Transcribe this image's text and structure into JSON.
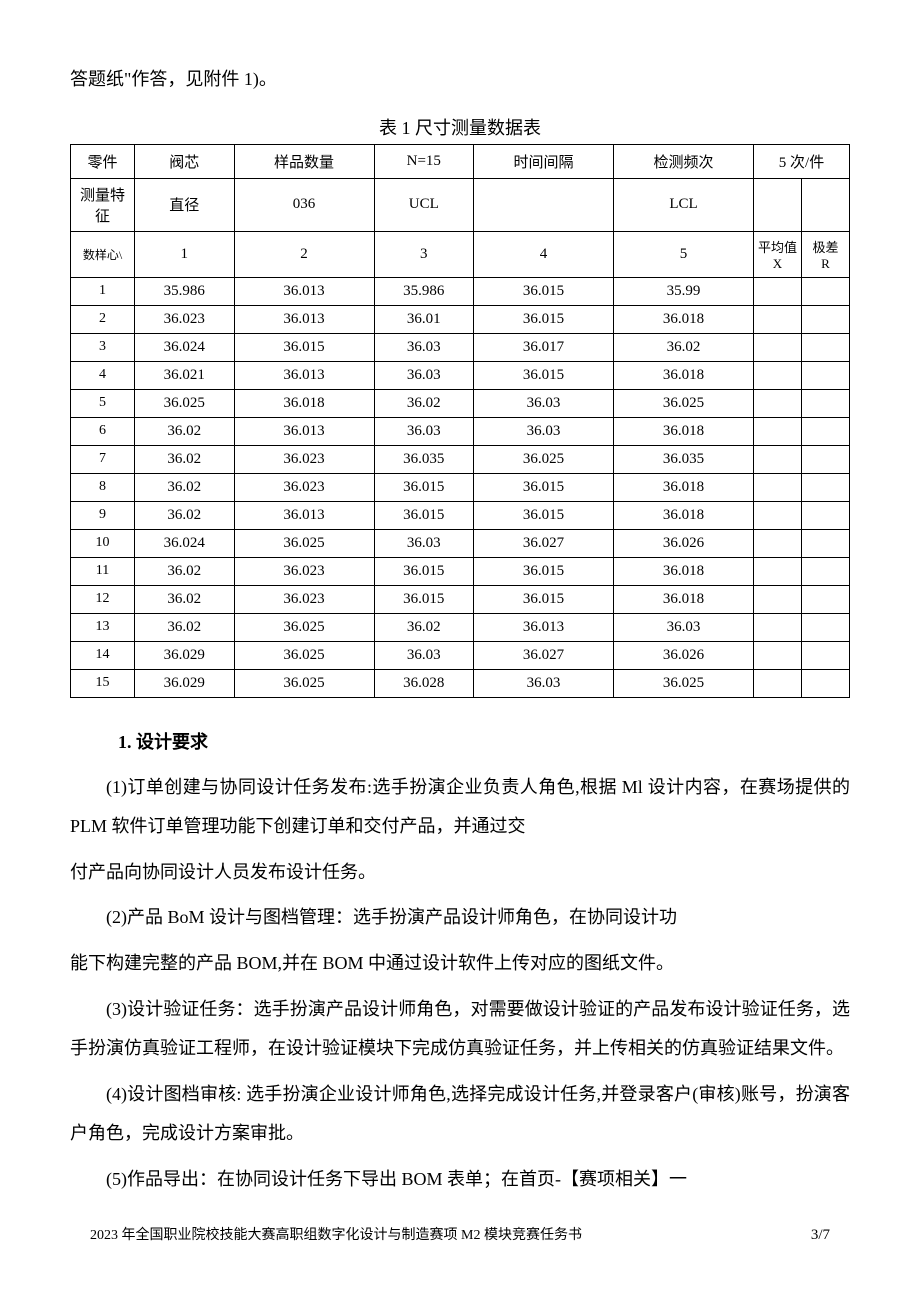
{
  "intro": "答题纸\"作答，见附件 1)。",
  "table_title": "表 1 尺寸测量数据表",
  "hdr1": {
    "c1": "零件",
    "c2": "阀芯",
    "c3": "样品数量",
    "c4": "N=15",
    "c5": "时间间隔",
    "c6": "检测频次",
    "c78": "5 次/件"
  },
  "hdr2": {
    "c1": "测量特征",
    "c2": "直径",
    "c3": "036",
    "c4": "UCL",
    "c5": "",
    "c6": "LCL",
    "c7": "",
    "c8": ""
  },
  "hdr3": {
    "c1": "数样心\\",
    "c2": "1",
    "c3": "2",
    "c4": "3",
    "c5": "4",
    "c6": "5",
    "c7": "平均值\nX",
    "c8": "极差\nR"
  },
  "rows": [
    {
      "n": "1",
      "v1": "35.986",
      "v2": "36.013",
      "v3": "35.986",
      "v4": "36.015",
      "v5": "35.99"
    },
    {
      "n": "2",
      "v1": "36.023",
      "v2": "36.013",
      "v3": "36.01",
      "v4": "36.015",
      "v5": "36.018"
    },
    {
      "n": "3",
      "v1": "36.024",
      "v2": "36.015",
      "v3": "36.03",
      "v4": "36.017",
      "v5": "36.02"
    },
    {
      "n": "4",
      "v1": "36.021",
      "v2": "36.013",
      "v3": "36.03",
      "v4": "36.015",
      "v5": "36.018"
    },
    {
      "n": "5",
      "v1": "36.025",
      "v2": "36.018",
      "v3": "36.02",
      "v4": "36.03",
      "v5": "36.025"
    },
    {
      "n": "6",
      "v1": "36.02",
      "v2": "36.013",
      "v3": "36.03",
      "v4": "36.03",
      "v5": "36.018"
    },
    {
      "n": "7",
      "v1": "36.02",
      "v2": "36.023",
      "v3": "36.035",
      "v4": "36.025",
      "v5": "36.035"
    },
    {
      "n": "8",
      "v1": "36.02",
      "v2": "36.023",
      "v3": "36.015",
      "v4": "36.015",
      "v5": "36.018"
    },
    {
      "n": "9",
      "v1": "36.02",
      "v2": "36.013",
      "v3": "36.015",
      "v4": "36.015",
      "v5": "36.018"
    },
    {
      "n": "10",
      "v1": "36.024",
      "v2": "36.025",
      "v3": "36.03",
      "v4": "36.027",
      "v5": "36.026"
    },
    {
      "n": "11",
      "v1": "36.02",
      "v2": "36.023",
      "v3": "36.015",
      "v4": "36.015",
      "v5": "36.018"
    },
    {
      "n": "12",
      "v1": "36.02",
      "v2": "36.023",
      "v3": "36.015",
      "v4": "36.015",
      "v5": "36.018"
    },
    {
      "n": "13",
      "v1": "36.02",
      "v2": "36.025",
      "v3": "36.02",
      "v4": "36.013",
      "v5": "36.03"
    },
    {
      "n": "14",
      "v1": "36.029",
      "v2": "36.025",
      "v3": "36.03",
      "v4": "36.027",
      "v5": "36.026"
    },
    {
      "n": "15",
      "v1": "36.029",
      "v2": "36.025",
      "v3": "36.028",
      "v4": "36.03",
      "v5": "36.025"
    }
  ],
  "section_heading": "1. 设计要求",
  "para1a": "(1)订单创建与协同设计任务发布:选手扮演企业负责人角色,根据 Ml 设计内容，在赛场提供的 PLM 软件订单管理功能下创建订单和交付产品，并通过交",
  "para1b": "付产品向协同设计人员发布设计任务。",
  "para2a": "(2)产品 BoM 设计与图档管理：选手扮演产品设计师角色，在协同设计功",
  "para2b": "能下构建完整的产品 BOM,并在 BOM 中通过设计软件上传对应的图纸文件。",
  "para3": "(3)设计验证任务：选手扮演产品设计师角色，对需要做设计验证的产品发布设计验证任务，选手扮演仿真验证工程师，在设计验证模块下完成仿真验证任务，并上传相关的仿真验证结果文件。",
  "para4": "(4)设计图档审核: 选手扮演企业设计师角色,选择完成设计任务,并登录客户(审核)账号，扮演客户角色，完成设计方案审批。",
  "para5": "(5)作品导出：在协同设计任务下导出 BOM 表单；在首页-【赛项相关】一",
  "footer_left": "2023 年全国职业院校技能大赛高职组数字化设计与制造赛项 M2 模块竞赛任务书",
  "footer_right": "3/7"
}
